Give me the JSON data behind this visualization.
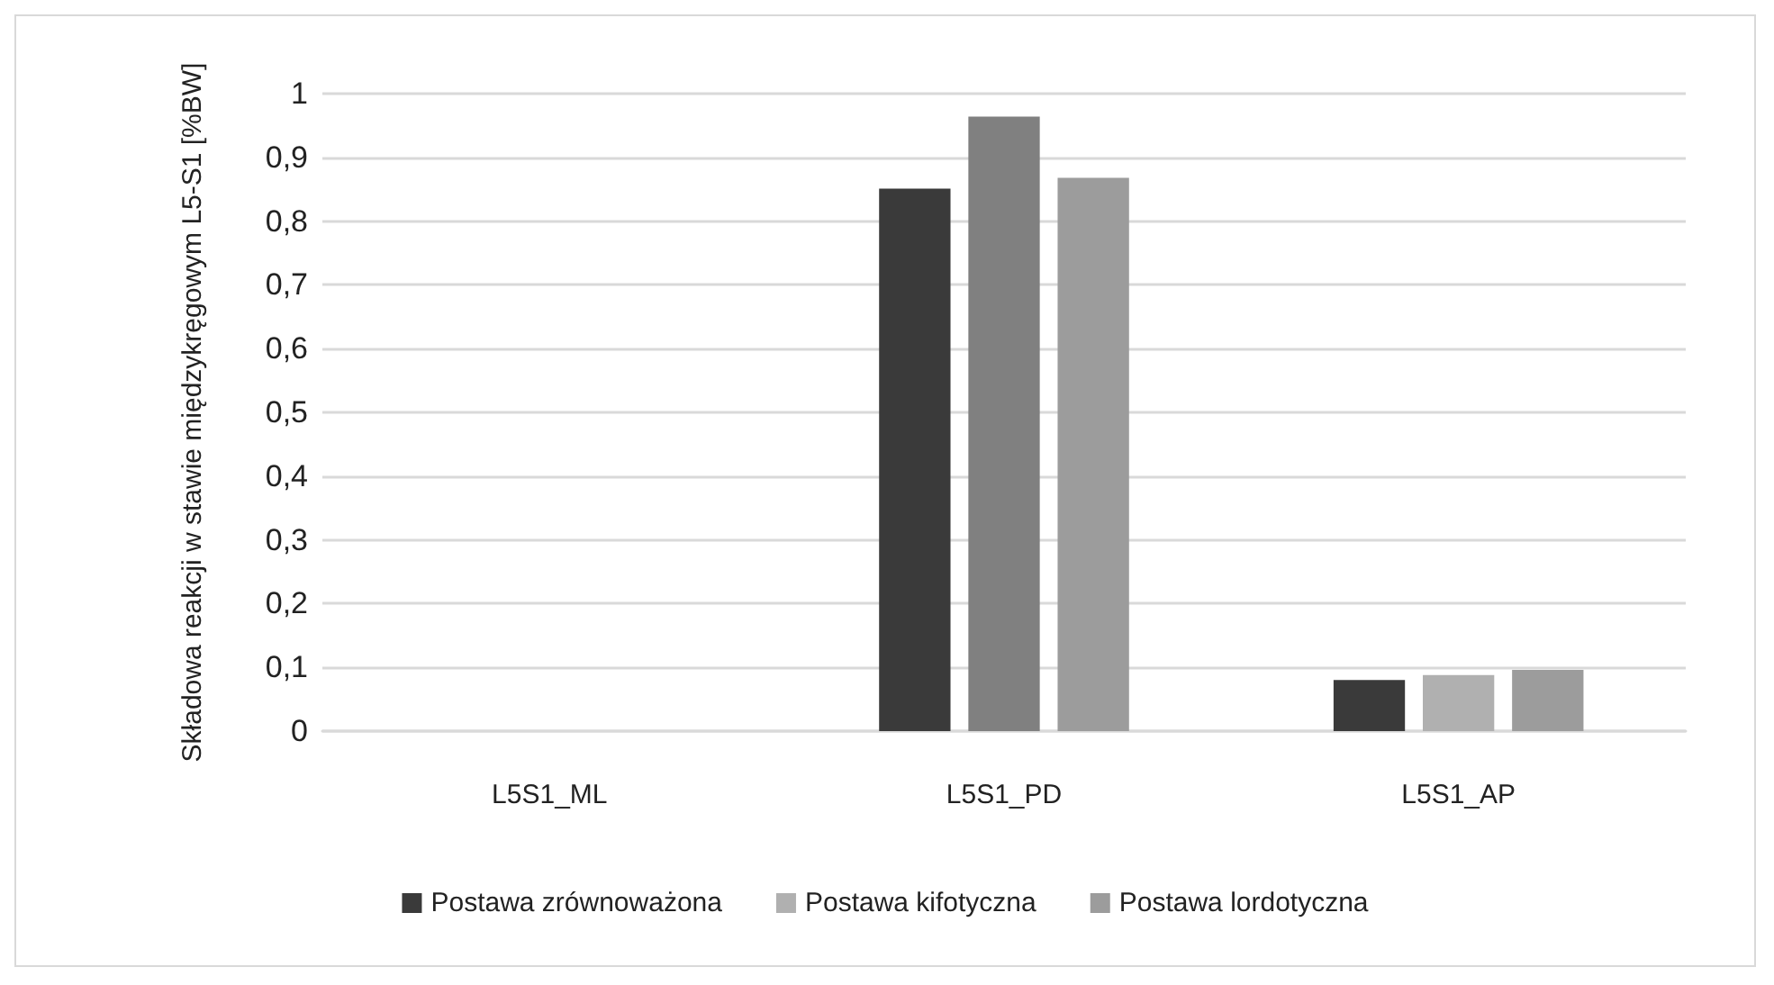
{
  "chart_data": {
    "type": "bar",
    "ylabel": "Składowa reakcji w stawie międzykręgowym L5-S1 [%BW]",
    "categories": [
      "L5S1_ML",
      "L5S1_PD",
      "L5S1_AP"
    ],
    "series": [
      {
        "name": "Postawa zrównoważona",
        "color": "#3a3a3a",
        "values": [
          0,
          0.851,
          0.08
        ]
      },
      {
        "name": "Postawa kifotyczna",
        "color": "#b0b0b0",
        "colors": [
          "#808080",
          "#808080",
          "#b0b0b0"
        ],
        "values": [
          0,
          0.964,
          0.088
        ]
      },
      {
        "name": "Postawa lordotyczna",
        "color": "#9c9c9c",
        "values": [
          0,
          0.868,
          0.096
        ]
      }
    ],
    "ylim": [
      0,
      1
    ],
    "yticks": [
      0,
      {
        "value": 0.1,
        "label": "0,1"
      },
      {
        "value": 0.2,
        "label": "0,2"
      },
      {
        "value": 0.3,
        "label": "0,3"
      },
      {
        "value": 0.4,
        "label": "0,4"
      },
      {
        "value": 0.5,
        "label": "0,5"
      },
      {
        "value": 0.6,
        "label": "0,6"
      },
      {
        "value": 0.7,
        "label": "0,7"
      },
      {
        "value": 0.8,
        "label": "0,8"
      },
      {
        "value": 0.9,
        "label": "0,9"
      },
      1
    ],
    "grid": "y",
    "legend": "bottom"
  }
}
